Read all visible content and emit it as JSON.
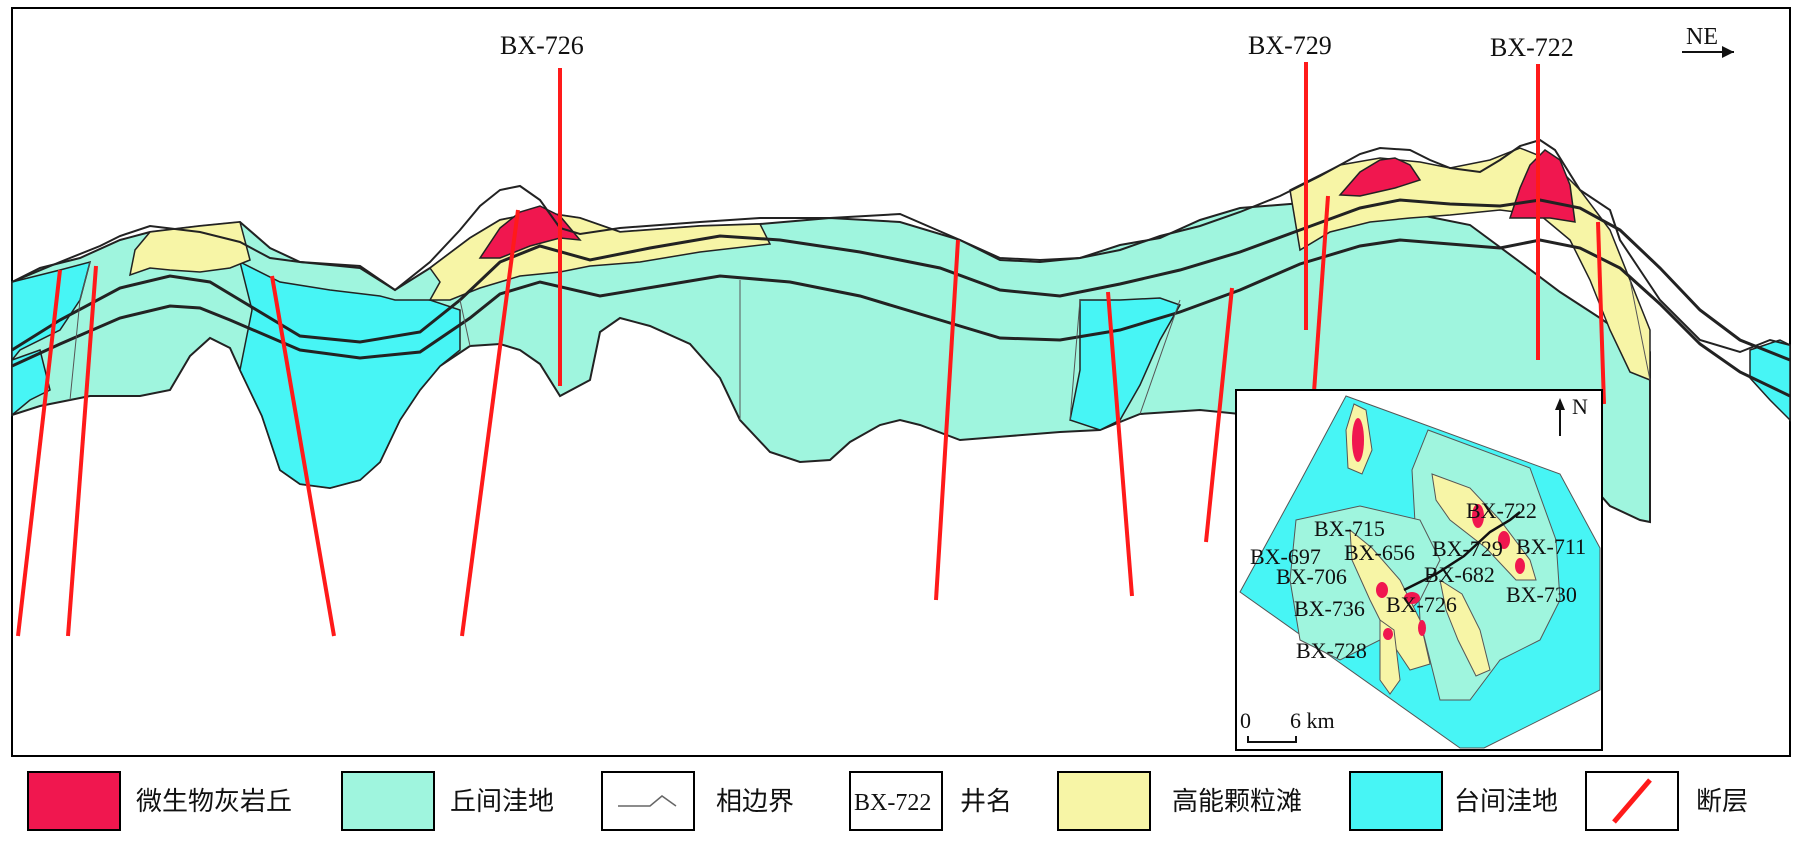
{
  "colors": {
    "microbial_mound": "#f0174f",
    "inter_mound_depression": "#9ff5de",
    "high_energy_shoal": "#f7f5a6",
    "inter_platform_depression": "#47f5f5",
    "fault": "#ff1a1a",
    "boundary": "#222222",
    "frame": "#000000"
  },
  "section": {
    "direction_label": "NE",
    "wells": [
      {
        "label": "BX-726"
      },
      {
        "label": "BX-729"
      },
      {
        "label": "BX-722"
      }
    ]
  },
  "inset_map": {
    "north_label": "N",
    "scale": {
      "zero": "0",
      "distance": "6 km"
    },
    "wells": [
      {
        "label": "BX-722"
      },
      {
        "label": "BX-715"
      },
      {
        "label": "BX-697"
      },
      {
        "label": "BX-656"
      },
      {
        "label": "BX-729"
      },
      {
        "label": "BX-711"
      },
      {
        "label": "BX-706"
      },
      {
        "label": "BX-682"
      },
      {
        "label": "BX-730"
      },
      {
        "label": "BX-736"
      },
      {
        "label": "BX-726"
      },
      {
        "label": "BX-728"
      }
    ]
  },
  "legend": [
    {
      "key": "microbial_mound",
      "label": "微生物灰岩丘"
    },
    {
      "key": "inter_mound_depression",
      "label": "丘间洼地"
    },
    {
      "key": "facies_boundary",
      "label": "相边界"
    },
    {
      "key": "well_name",
      "sample": "BX-722",
      "label": "井名"
    },
    {
      "key": "high_energy_shoal",
      "label": "高能颗粒滩"
    },
    {
      "key": "inter_platform_depression",
      "label": "台间洼地"
    },
    {
      "key": "fault",
      "label": "断层"
    }
  ]
}
